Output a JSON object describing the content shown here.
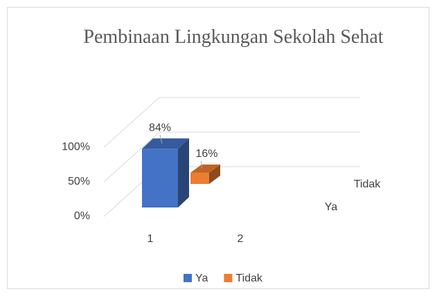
{
  "chart_data": {
    "type": "bar3d",
    "title": "Pembinaan Lingkungan Sekolah Sehat",
    "categories": [
      "1",
      "2"
    ],
    "series": [
      {
        "name": "Ya",
        "color": "#4472c4",
        "values": [
          84,
          null
        ],
        "value_labels": [
          "84%",
          null
        ]
      },
      {
        "name": "Tidak",
        "color": "#ed7d31",
        "values": [
          16,
          null
        ],
        "value_labels": [
          "16%",
          null
        ]
      }
    ],
    "ylim": [
      0,
      100
    ],
    "yticks": [
      {
        "value": 0,
        "label": "0%"
      },
      {
        "value": 50,
        "label": "50%"
      },
      {
        "value": 100,
        "label": "100%"
      }
    ],
    "grid": true,
    "legend": "bottom"
  }
}
